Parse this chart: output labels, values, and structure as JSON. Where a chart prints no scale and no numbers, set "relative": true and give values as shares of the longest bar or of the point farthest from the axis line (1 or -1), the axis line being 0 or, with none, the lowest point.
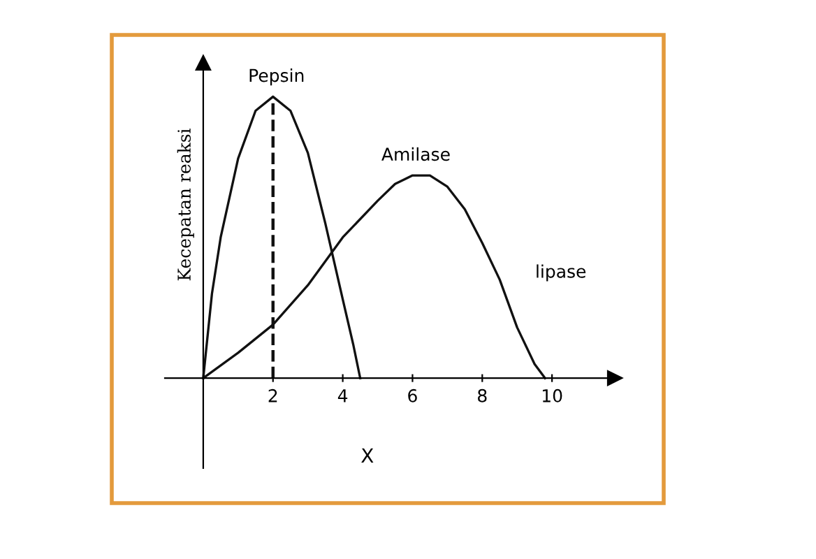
{
  "chart_data": {
    "type": "line",
    "relative": true,
    "xlabel": "X",
    "ylabel": "Kecepatan reaksi",
    "xlim": [
      -1.1,
      11.8
    ],
    "xticks": [
      2,
      4,
      6,
      8,
      10
    ],
    "tick_labels": "x",
    "grid": false,
    "legend": false,
    "marker": "none",
    "line_style": "solid",
    "series": [
      {
        "name": "Pepsin",
        "color": "#111111",
        "x": [
          0,
          0.25,
          0.5,
          1,
          1.5,
          2,
          2.5,
          3,
          3.5,
          4,
          4.3,
          4.5
        ],
        "values": [
          0,
          0.3,
          0.5,
          0.78,
          0.95,
          1,
          0.95,
          0.8,
          0.55,
          0.28,
          0.12,
          0
        ]
      },
      {
        "name": "Amilase",
        "color": "#111111",
        "x": [
          0,
          1,
          2,
          3,
          4,
          5,
          5.5,
          6,
          6.5,
          7,
          7.5,
          8,
          8.5,
          9,
          9.5,
          9.8
        ],
        "values": [
          0,
          0.09,
          0.19,
          0.33,
          0.5,
          0.63,
          0.69,
          0.72,
          0.72,
          0.68,
          0.6,
          0.48,
          0.35,
          0.18,
          0.05,
          0
        ]
      }
    ],
    "ref_lines": [
      {
        "axis": "x",
        "value": 2,
        "line_style": "dashed",
        "color": "#111111"
      }
    ],
    "annotations": [
      "lipase"
    ]
  }
}
